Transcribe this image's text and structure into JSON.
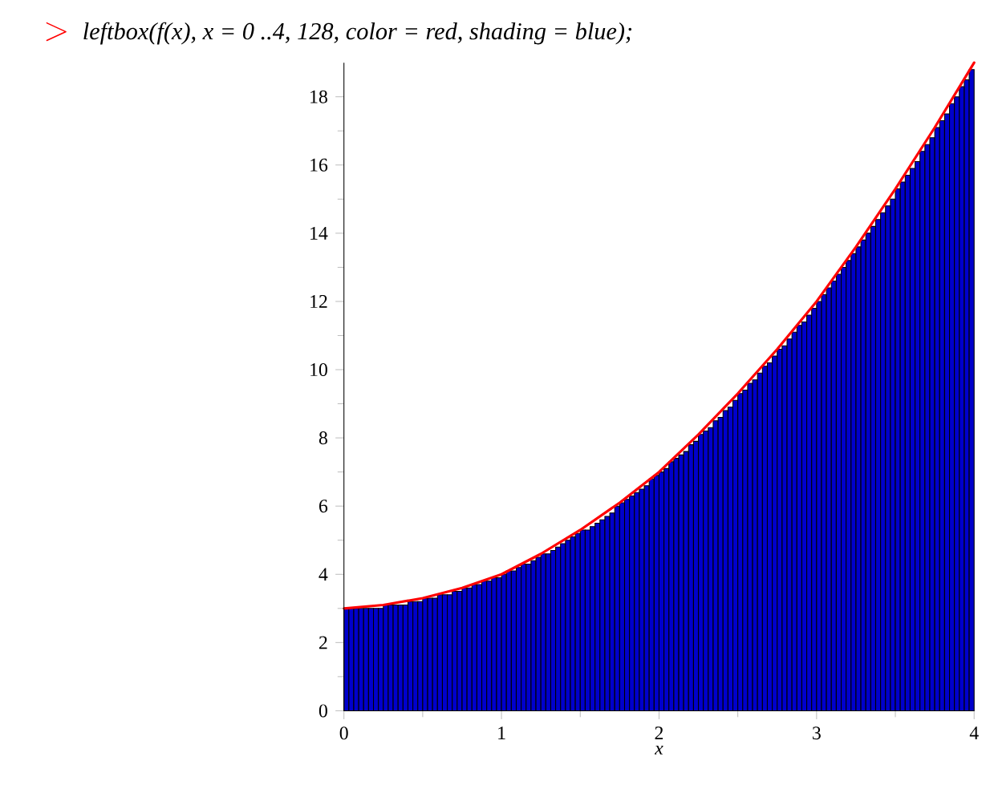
{
  "chart_data": {
    "type": "histogram",
    "title": "leftbox(f(x), x = 0 ..4, 128, color = red, shading = blue);",
    "xlabel": "x",
    "annotations": [
      ">"
    ],
    "xlim": [
      0,
      4
    ],
    "ylim": [
      0,
      19
    ],
    "xticks": [
      0,
      1,
      2,
      3,
      4
    ],
    "yticks": [
      0,
      2,
      4,
      6,
      8,
      10,
      12,
      14,
      16,
      18
    ],
    "series": [
      {
        "color": "#0000cc",
        "bins": [
          0,
          0.03125,
          0.0625,
          0.09375,
          0.125,
          0.15625,
          0.1875,
          0.21875,
          0.25,
          0.28125,
          0.3125,
          0.34375,
          0.375,
          0.40625,
          0.4375,
          0.46875,
          0.5,
          0.53125,
          0.5625,
          0.59375,
          0.625,
          0.65625,
          0.6875,
          0.71875,
          0.75,
          0.78125,
          0.8125,
          0.84375,
          0.875,
          0.90625,
          0.9375,
          0.96875,
          1,
          1.03125,
          1.0625,
          1.09375,
          1.125,
          1.15625,
          1.1875,
          1.21875,
          1.25,
          1.28125,
          1.3125,
          1.34375,
          1.375,
          1.40625,
          1.4375,
          1.46875,
          1.5,
          1.53125,
          1.5625,
          1.59375,
          1.625,
          1.65625,
          1.6875,
          1.71875,
          1.75,
          1.78125,
          1.8125,
          1.84375,
          1.875,
          1.90625,
          1.9375,
          1.96875,
          2,
          2.03125,
          2.0625,
          2.09375,
          2.125,
          2.15625,
          2.1875,
          2.21875,
          2.25,
          2.28125,
          2.3125,
          2.34375,
          2.375,
          2.40625,
          2.4375,
          2.46875,
          2.5,
          2.53125,
          2.5625,
          2.59375,
          2.625,
          2.65625,
          2.6875,
          2.71875,
          2.75,
          2.78125,
          2.8125,
          2.84375,
          2.875,
          2.90625,
          2.9375,
          2.96875,
          3,
          3.03125,
          3.0625,
          3.09375,
          3.125,
          3.15625,
          3.1875,
          3.21875,
          3.25,
          3.28125,
          3.3125,
          3.34375,
          3.375,
          3.40625,
          3.4375,
          3.46875,
          3.5,
          3.53125,
          3.5625,
          3.59375,
          3.625,
          3.65625,
          3.6875,
          3.71875,
          3.75,
          3.78125,
          3.8125,
          3.84375,
          3.875,
          3.90625,
          3.9375,
          3.96875,
          4
        ],
        "values": [
          3.0,
          3.0,
          3.0,
          3.0,
          3.0,
          3.0,
          3.0,
          3.0,
          3.1,
          3.1,
          3.1,
          3.1,
          3.1,
          3.2,
          3.2,
          3.2,
          3.3,
          3.3,
          3.3,
          3.4,
          3.4,
          3.4,
          3.5,
          3.5,
          3.6,
          3.6,
          3.7,
          3.7,
          3.8,
          3.8,
          3.9,
          3.9,
          4.0,
          4.1,
          4.1,
          4.2,
          4.3,
          4.3,
          4.4,
          4.5,
          4.6,
          4.6,
          4.7,
          4.8,
          4.9,
          5.0,
          5.1,
          5.2,
          5.3,
          5.3,
          5.4,
          5.5,
          5.6,
          5.7,
          5.8,
          6.0,
          6.1,
          6.2,
          6.3,
          6.4,
          6.5,
          6.6,
          6.8,
          6.9,
          7.0,
          7.1,
          7.3,
          7.4,
          7.5,
          7.6,
          7.8,
          7.9,
          8.1,
          8.2,
          8.3,
          8.5,
          8.6,
          8.8,
          8.9,
          9.1,
          9.3,
          9.4,
          9.6,
          9.7,
          9.9,
          10.1,
          10.2,
          10.4,
          10.6,
          10.7,
          10.9,
          11.1,
          11.3,
          11.4,
          11.6,
          11.8,
          12.0,
          12.2,
          12.4,
          12.6,
          12.8,
          13.0,
          13.2,
          13.4,
          13.6,
          13.8,
          14.0,
          14.2,
          14.4,
          14.6,
          14.8,
          15.0,
          15.3,
          15.5,
          15.7,
          15.9,
          16.1,
          16.4,
          16.6,
          16.8,
          17.1,
          17.3,
          17.5,
          17.8,
          18.0,
          18.3,
          18.5,
          18.8
        ]
      },
      {
        "type": "line",
        "color": "#ff0000",
        "x": [
          0,
          0.25,
          0.5,
          0.75,
          1,
          1.25,
          1.5,
          1.75,
          2,
          2.25,
          2.5,
          2.75,
          3,
          3.25,
          3.5,
          3.75,
          4
        ],
        "values": [
          3.0,
          3.1,
          3.3,
          3.6,
          4.0,
          4.6,
          5.3,
          6.1,
          7.0,
          8.1,
          9.3,
          10.6,
          12.0,
          13.6,
          15.3,
          17.1,
          19.0
        ]
      }
    ]
  }
}
